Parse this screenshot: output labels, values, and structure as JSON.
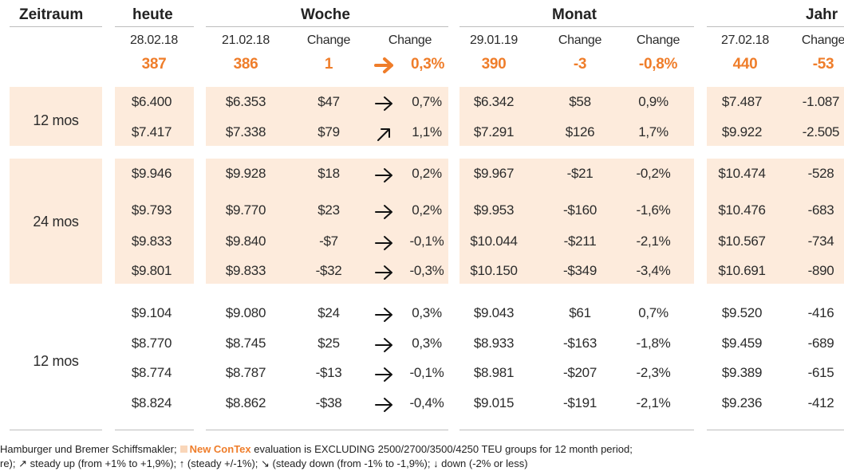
{
  "headers": {
    "zeitraum": "Zeitraum",
    "heute": "heute",
    "woche": "Woche",
    "monat": "Monat",
    "jahr": "Jahr"
  },
  "subheaders": {
    "heute_date": "28.02.18",
    "woche_date": "21.02.18",
    "woche_change1": "Change",
    "woche_change2": "Change",
    "monat_date": "29.01.19",
    "monat_change1": "Change",
    "monat_change2": "Change",
    "jahr_date": "27.02.18",
    "jahr_change": "Change"
  },
  "index_row": {
    "heute": "387",
    "woche": "386",
    "woche_change": "1",
    "woche_arrow": "right-arrow-icon",
    "woche_pct": "0,3%",
    "monat": "390",
    "monat_change": "-3",
    "monat_pct": "-0,8%",
    "jahr": "440",
    "jahr_change": "-53"
  },
  "groups": [
    {
      "label": "12 mos",
      "shaded": true
    },
    {
      "label": "24 mos",
      "shaded": true
    },
    {
      "label": "12 mos",
      "shaded": false
    }
  ],
  "rows": [
    {
      "heute": "$6.400",
      "woche": "$6.353",
      "w_change": "$47",
      "w_arrow": "right-arrow-icon",
      "w_pct": "0,7%",
      "monat": "$6.342",
      "m_change": "$58",
      "m_pct": "0,9%",
      "jahr": "$7.487",
      "j_change": "-1.087"
    },
    {
      "heute": "$7.417",
      "woche": "$7.338",
      "w_change": "$79",
      "w_arrow": "up-right-arrow-icon",
      "w_pct": "1,1%",
      "monat": "$7.291",
      "m_change": "$126",
      "m_pct": "1,7%",
      "jahr": "$9.922",
      "j_change": "-2.505"
    },
    {
      "heute": "$9.946",
      "woche": "$9.928",
      "w_change": "$18",
      "w_arrow": "right-arrow-icon",
      "w_pct": "0,2%",
      "monat": "$9.967",
      "m_change": "-$21",
      "m_pct": "-0,2%",
      "jahr": "$10.474",
      "j_change": "-528"
    },
    {
      "heute": "$9.793",
      "woche": "$9.770",
      "w_change": "$23",
      "w_arrow": "right-arrow-icon",
      "w_pct": "0,2%",
      "monat": "$9.953",
      "m_change": "-$160",
      "m_pct": "-1,6%",
      "jahr": "$10.476",
      "j_change": "-683"
    },
    {
      "heute": "$9.833",
      "woche": "$9.840",
      "w_change": "-$7",
      "w_arrow": "right-arrow-icon",
      "w_pct": "-0,1%",
      "monat": "$10.044",
      "m_change": "-$211",
      "m_pct": "-2,1%",
      "jahr": "$10.567",
      "j_change": "-734"
    },
    {
      "heute": "$9.801",
      "woche": "$9.833",
      "w_change": "-$32",
      "w_arrow": "right-arrow-icon",
      "w_pct": "-0,3%",
      "monat": "$10.150",
      "m_change": "-$349",
      "m_pct": "-3,4%",
      "jahr": "$10.691",
      "j_change": "-890"
    },
    {
      "heute": "$9.104",
      "woche": "$9.080",
      "w_change": "$24",
      "w_arrow": "right-arrow-icon",
      "w_pct": "0,3%",
      "monat": "$9.043",
      "m_change": "$61",
      "m_pct": "0,7%",
      "jahr": "$9.520",
      "j_change": "-416"
    },
    {
      "heute": "$8.770",
      "woche": "$8.745",
      "w_change": "$25",
      "w_arrow": "right-arrow-icon",
      "w_pct": "0,3%",
      "monat": "$8.933",
      "m_change": "-$163",
      "m_pct": "-1,8%",
      "jahr": "$9.459",
      "j_change": "-689"
    },
    {
      "heute": "$8.774",
      "woche": "$8.787",
      "w_change": "-$13",
      "w_arrow": "right-arrow-icon",
      "w_pct": "-0,1%",
      "monat": "$8.981",
      "m_change": "-$207",
      "m_pct": "-2,3%",
      "jahr": "$9.389",
      "j_change": "-615"
    },
    {
      "heute": "$8.824",
      "woche": "$8.862",
      "w_change": "-$38",
      "w_arrow": "right-arrow-icon",
      "w_pct": "-0,4%",
      "monat": "$9.015",
      "m_change": "-$191",
      "m_pct": "-2,1%",
      "jahr": "$9.236",
      "j_change": "-412"
    }
  ],
  "footer": {
    "line1_a": "Hamburger und Bremer Schiffsmakler;",
    "line1_brand": "New ConTex",
    "line1_b": "evaluation is EXCLUDING 2500/2700/3500/4250 TEU groups for 12 month period;",
    "line2": "re); ↗ steady up (from +1% to +1,9%); ↑ (steady +/-1%); ↘ (steady down (from -1% to -1,9%); ↓ down (-2% or less)"
  },
  "colors": {
    "accent": "#ef7d2a",
    "band": "#fdebdc",
    "text": "#2b2b2b"
  }
}
